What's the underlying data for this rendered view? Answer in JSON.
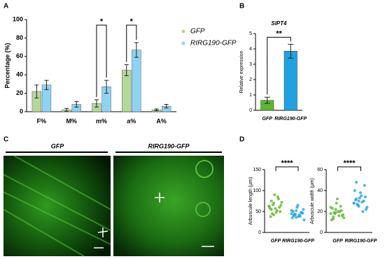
{
  "panel_labels": [
    "A",
    "B",
    "C",
    "D"
  ],
  "images": {
    "labels": [
      "GFP",
      "RIRG190-GFP"
    ]
  },
  "chart_data": [
    {
      "type": "bar",
      "ylabel": "Percentage (%)",
      "categories": [
        "F%",
        "M%",
        "m%",
        "a%",
        "A%"
      ],
      "ylim": [
        0,
        100
      ],
      "yticks": [
        0,
        20,
        40,
        60,
        80,
        100
      ],
      "series": [
        {
          "name": "GFP",
          "color": "#b3d99a",
          "values": [
            22,
            2,
            9,
            45,
            2
          ],
          "errors": [
            7,
            1.5,
            4,
            6,
            1
          ]
        },
        {
          "name": "RIRG190-GFP",
          "color": "#8dd3f3",
          "values": [
            29,
            8,
            27,
            67,
            6
          ],
          "errors": [
            5,
            3,
            7,
            8,
            2
          ]
        }
      ],
      "significance": [
        null,
        null,
        "*",
        "*",
        null
      ]
    },
    {
      "type": "bar",
      "title": "SlPT4",
      "ylabel": "Relative expression",
      "categories": [
        "GFP",
        "RIRG190-GFP"
      ],
      "ylim": [
        0,
        5
      ],
      "yticks": [
        0,
        1,
        2,
        3,
        4,
        5
      ],
      "values": [
        0.65,
        3.85
      ],
      "errors": [
        0.2,
        0.45
      ],
      "colors": [
        "#5cb82e",
        "#1ea3e0"
      ],
      "significance": "**"
    },
    {
      "type": "strip",
      "ylabel": "Arbuscule length (μm)",
      "categories": [
        "GFP",
        "RIRG190-GFP"
      ],
      "ylim": [
        0,
        150
      ],
      "yticks": [
        0,
        50,
        100,
        150
      ],
      "colors": [
        "#5cb82e",
        "#1ea3e0"
      ],
      "values": [
        [
          62,
          55,
          70,
          48,
          80,
          65,
          58,
          45,
          90,
          52,
          60,
          72,
          38,
          66,
          57,
          85,
          50,
          63,
          75,
          42
        ],
        [
          45,
          40,
          52,
          38,
          48,
          55,
          35,
          44,
          60,
          42,
          47,
          30,
          50,
          43,
          65,
          39,
          46,
          53,
          41,
          36
        ]
      ],
      "significance": "****"
    },
    {
      "type": "strip",
      "ylabel": "Arbuscule width (μm)",
      "categories": [
        "GFP",
        "RIRG190-GFP"
      ],
      "ylim": [
        0,
        60
      ],
      "yticks": [
        0,
        20,
        40,
        60
      ],
      "colors": [
        "#5cb82e",
        "#1ea3e0"
      ],
      "values": [
        [
          18,
          15,
          22,
          20,
          25,
          17,
          12,
          19,
          28,
          16,
          21,
          14,
          23,
          18,
          32,
          20,
          16,
          24,
          13,
          19
        ],
        [
          28,
          32,
          25,
          35,
          30,
          22,
          40,
          27,
          33,
          29,
          45,
          24,
          31,
          26,
          38,
          20,
          34,
          28,
          48,
          30
        ]
      ],
      "significance": "****"
    }
  ]
}
